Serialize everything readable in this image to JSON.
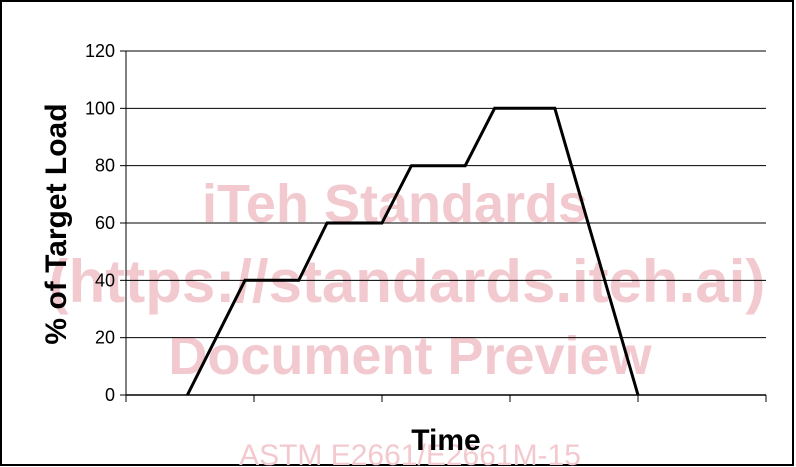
{
  "chart_data": {
    "type": "line",
    "title": "",
    "xlabel": "Time",
    "ylabel": "% of Target Load",
    "ylim": [
      0,
      120
    ],
    "yticks": [
      "0",
      "20",
      "40",
      "60",
      "80",
      "100",
      "120"
    ],
    "grid": "horizontal",
    "legend": "none",
    "xlim": [
      0,
      5
    ],
    "series": [
      {
        "x": [
          0.48,
          0.93,
          1.35,
          1.57,
          2.0,
          2.23,
          2.65,
          2.88,
          3.35,
          4.0
        ],
        "values": [
          0,
          40,
          40,
          60,
          60,
          80,
          80,
          100,
          100,
          0
        ]
      }
    ]
  },
  "watermark": {
    "line1": "iTeh Standards",
    "line2": "(https://standards.iteh.ai)",
    "line3": "Document Preview",
    "footer": "ASTM E2661/E2661M-15"
  },
  "colors": {
    "line": "#000000",
    "grid": "#000000",
    "watermark": "#f2c9cf"
  }
}
